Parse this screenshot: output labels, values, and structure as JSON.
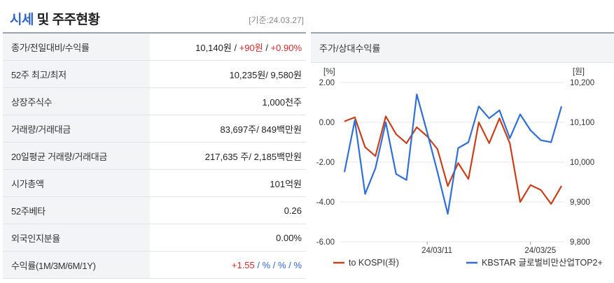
{
  "header": {
    "title_part1": "시세",
    "title_part2": "및 주주현황",
    "base_date": "[기준:24.03.27]"
  },
  "table": {
    "rows": [
      {
        "label": "종가/전일대비/수익률",
        "v1": "10,140원",
        "sep1": " / ",
        "v2": "+90원",
        "sep2": " / ",
        "v3": "+0.90%"
      },
      {
        "label": "52주 최고/최저",
        "value": "10,235원/ 9,580원"
      },
      {
        "label": "상장주식수",
        "value": "1,000천주"
      },
      {
        "label": "거래량/거래대금",
        "value": "83,697주/ 849백만원"
      },
      {
        "label": "20일평균 거래량/거래대금",
        "value": "217,635 주/ 2,185백만원"
      },
      {
        "label": "시가총액",
        "value": "101억원"
      },
      {
        "label": "52주베타",
        "value": "0.26"
      },
      {
        "label": "외국인지분율",
        "value": "0.00%"
      },
      {
        "label": "수익률(1M/3M/6M/1Y)",
        "v1": "+1.55",
        "s1": " / ",
        "v2": "%",
        "s2": " / ",
        "v3": "%",
        "s3": " / ",
        "v4": "%"
      }
    ]
  },
  "chart_panel": {
    "title": "주가/상대수익률"
  },
  "chart_data": {
    "type": "line",
    "left_axis_label": "[%]",
    "right_axis_label": "[원]",
    "left_ticks": [
      "2.00",
      "0.00",
      "-2.00",
      "-4.00",
      "-6.00"
    ],
    "right_ticks": [
      "10,200",
      "10,100",
      "10,000",
      "9,900",
      "9,800"
    ],
    "x_ticks": [
      "24/03/11",
      "24/03/25"
    ],
    "left_ylim": [
      -6,
      2
    ],
    "right_ylim": [
      9800,
      10200
    ],
    "colors": {
      "kospi": "#c8401a",
      "kbstar": "#2f6fd6"
    },
    "series": [
      {
        "name": "to KOSPI(좌)",
        "axis": "left",
        "values": [
          0.05,
          0.25,
          -1.25,
          -1.7,
          0.3,
          -0.6,
          -1.05,
          -0.25,
          -0.7,
          -1.35,
          -3.2,
          -2.05,
          -2.85,
          0.0,
          -1.05,
          0.2,
          -1.05,
          -4.0,
          -3.15,
          -3.4,
          -4.1,
          -3.2
        ]
      },
      {
        "name": "KBSTAR 글로벌비만산업TOP2+",
        "axis": "right",
        "values": [
          9975,
          10105,
          9920,
          9985,
          10100,
          9970,
          9955,
          10170,
          10075,
          9975,
          9870,
          10035,
          10050,
          10140,
          10110,
          10130,
          10060,
          10120,
          10080,
          10055,
          10050,
          10140
        ]
      }
    ]
  }
}
